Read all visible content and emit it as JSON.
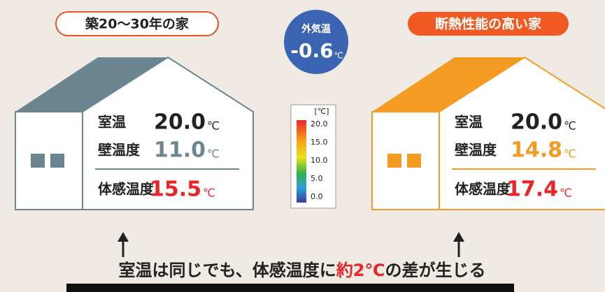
{
  "header": {
    "outside_label": "外気温",
    "outside_value": "-0.6",
    "unit": "℃"
  },
  "houses": [
    {
      "title": "築20〜30年の家",
      "rows": [
        {
          "label": "室温",
          "value": "20.0"
        },
        {
          "label": "壁温度",
          "value": "11.0"
        },
        {
          "label": "体感温度",
          "value": "15.5"
        }
      ]
    },
    {
      "title": "断熱性能の高い家",
      "rows": [
        {
          "label": "室温",
          "value": "20.0"
        },
        {
          "label": "壁温度",
          "value": "14.8"
        },
        {
          "label": "体感温度",
          "value": "17.4"
        }
      ]
    }
  ],
  "legend": {
    "unit_label": "[℃]",
    "ticks": [
      "20.0",
      "15.0",
      "10.0",
      "5.0",
      "0.0"
    ]
  },
  "footer": {
    "before": "室温は同じでも、体感温度に",
    "highlight": "約2℃",
    "after": "の差が生じる"
  }
}
